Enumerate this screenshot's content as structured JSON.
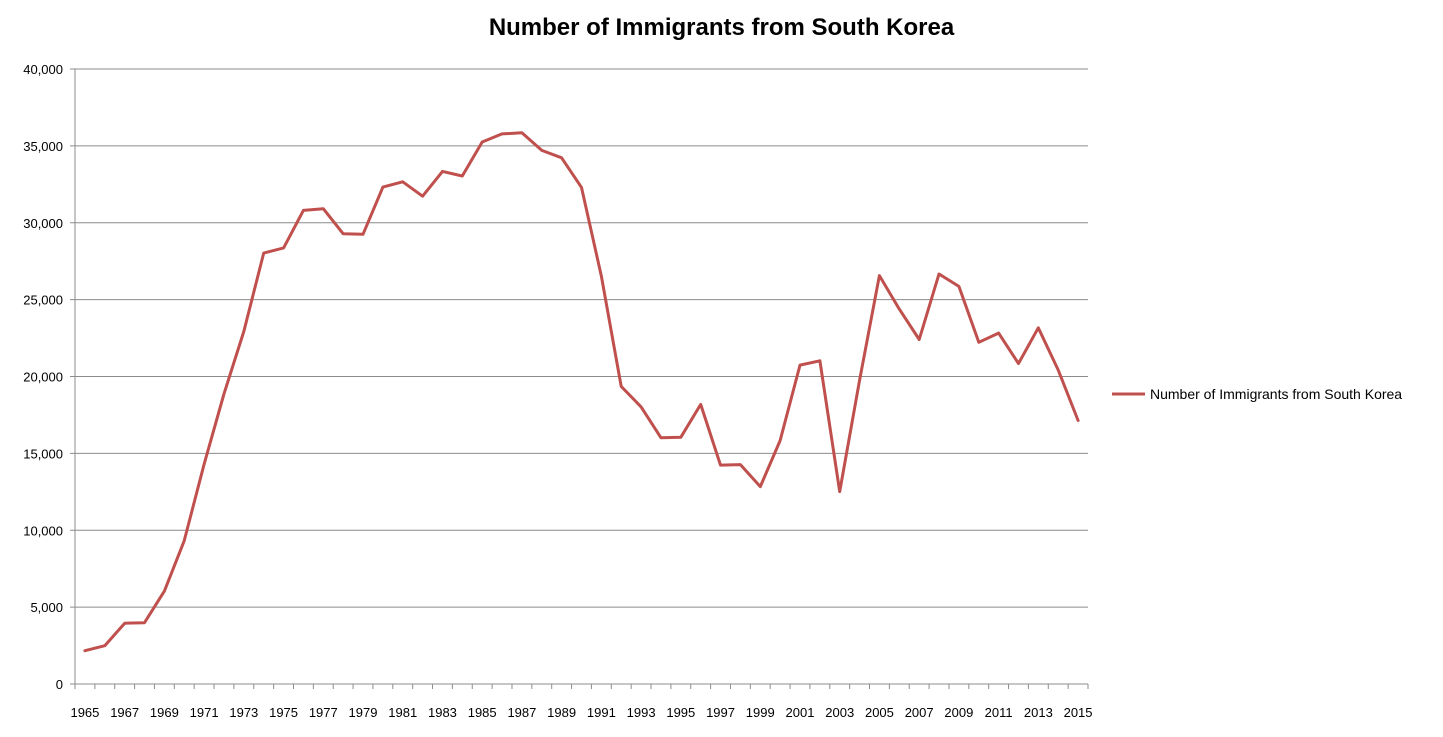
{
  "chart_data": {
    "type": "line",
    "title": "Number of Immigrants from South Korea",
    "xlabel": "",
    "ylabel": "",
    "ylim": [
      0,
      40000
    ],
    "y_ticks": [
      0,
      5000,
      10000,
      15000,
      20000,
      25000,
      30000,
      35000,
      40000
    ],
    "y_tick_labels": [
      "0",
      "5,000",
      "10,000",
      "15,000",
      "20,000",
      "25,000",
      "30,000",
      "35,000",
      "40,000"
    ],
    "x_tick_labels": [
      "1965",
      "1967",
      "1969",
      "1971",
      "1973",
      "1975",
      "1977",
      "1979",
      "1981",
      "1983",
      "1985",
      "1987",
      "1989",
      "1991",
      "1993",
      "1995",
      "1997",
      "1999",
      "2001",
      "2003",
      "2005",
      "2007",
      "2009",
      "2011",
      "2013",
      "2015"
    ],
    "grid": "horizontal",
    "legend_position": "right",
    "series_color": "#C0504D",
    "x": [
      1965,
      1966,
      1967,
      1968,
      1969,
      1970,
      1971,
      1972,
      1973,
      1974,
      1975,
      1976,
      1977,
      1978,
      1979,
      1980,
      1981,
      1982,
      1983,
      1984,
      1985,
      1986,
      1987,
      1988,
      1989,
      1990,
      1991,
      1992,
      1993,
      1994,
      1995,
      1996,
      1997,
      1998,
      1999,
      2000,
      2001,
      2002,
      2003,
      2004,
      2005,
      2006,
      2007,
      2008,
      2009,
      2010,
      2011,
      2012,
      2013,
      2014,
      2015
    ],
    "series": [
      {
        "name": "Number of Immigrants from South Korea",
        "values": [
          2165,
          2492,
          3956,
          3986,
          6045,
          9314,
          14297,
          18876,
          22930,
          28028,
          28362,
          30803,
          30917,
          29288,
          29248,
          32320,
          32663,
          31724,
          33339,
          33042,
          35253,
          35776,
          35849,
          34703,
          34222,
          32301,
          26518,
          19359,
          18026,
          16011,
          16047,
          18185,
          14239,
          14268,
          12840,
          15830,
          20742,
          21021,
          12512,
          19766,
          26562,
          24386,
          22405,
          26666,
          25859,
          22227,
          22824,
          20846,
          23166,
          20423,
          17138
        ]
      }
    ]
  }
}
